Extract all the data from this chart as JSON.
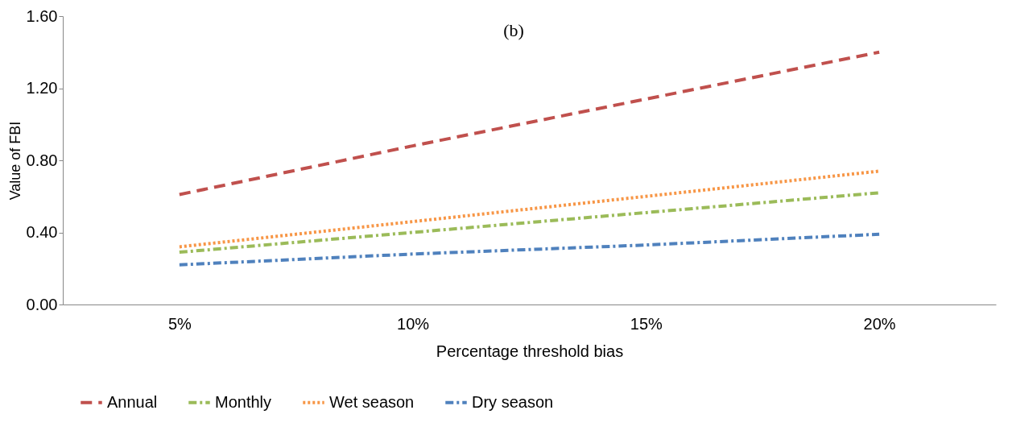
{
  "chart_data": {
    "type": "line",
    "title": "(b)",
    "xlabel": "Percentage threshold bias",
    "ylabel": "Value of FBI",
    "categories": [
      "5%",
      "10%",
      "15%",
      "20%"
    ],
    "series": [
      {
        "name": "Annual",
        "color": "#c0504d",
        "line_style": "dashed",
        "values": [
          0.61,
          0.88,
          1.14,
          1.4
        ]
      },
      {
        "name": "Monthly",
        "color": "#9bbb59",
        "line_style": "dashdot",
        "values": [
          0.29,
          0.4,
          0.51,
          0.62
        ]
      },
      {
        "name": "Wet season",
        "color": "#f79646",
        "line_style": "dotted",
        "values": [
          0.32,
          0.46,
          0.6,
          0.74
        ]
      },
      {
        "name": "Dry season",
        "color": "#4f81bd",
        "line_style": "dashdot",
        "values": [
          0.22,
          0.28,
          0.33,
          0.39
        ]
      }
    ],
    "ylim": [
      0,
      1.6
    ],
    "yticks": [
      {
        "value": 0,
        "label": "0.00"
      },
      {
        "value": 0.4,
        "label": "0.40"
      },
      {
        "value": 0.8,
        "label": "0.80"
      },
      {
        "value": 1.2,
        "label": "1.20"
      },
      {
        "value": 1.6,
        "label": "1.60"
      }
    ],
    "grid": false,
    "legend": "bottom",
    "marker": "none"
  }
}
